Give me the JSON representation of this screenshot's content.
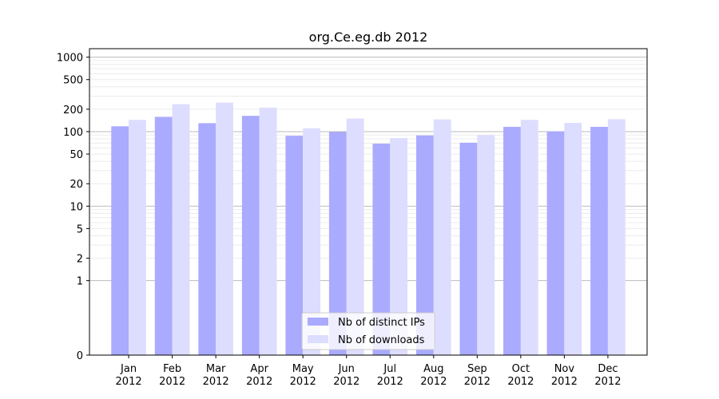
{
  "chart_data": {
    "type": "bar",
    "title": "org.Ce.eg.db 2012",
    "xlabel": "",
    "ylabel": "",
    "yscale": "symlog",
    "ylim": [
      0,
      1300
    ],
    "yticks": [
      0,
      1,
      2,
      5,
      10,
      20,
      50,
      100,
      200,
      500,
      1000
    ],
    "grid": true,
    "legend_position": "bottom-center",
    "categories": [
      [
        "Jan",
        "2012"
      ],
      [
        "Feb",
        "2012"
      ],
      [
        "Mar",
        "2012"
      ],
      [
        "Apr",
        "2012"
      ],
      [
        "May",
        "2012"
      ],
      [
        "Jun",
        "2012"
      ],
      [
        "Jul",
        "2012"
      ],
      [
        "Aug",
        "2012"
      ],
      [
        "Sep",
        "2012"
      ],
      [
        "Oct",
        "2012"
      ],
      [
        "Nov",
        "2012"
      ],
      [
        "Dec",
        "2012"
      ]
    ],
    "series": [
      {
        "name": "Nb of distinct IPs",
        "color": "#aaaaff",
        "values": [
          118,
          158,
          130,
          163,
          88,
          99,
          69,
          89,
          71,
          116,
          101,
          116
        ]
      },
      {
        "name": "Nb of downloads",
        "color": "#ddddff",
        "values": [
          144,
          234,
          245,
          210,
          111,
          150,
          82,
          146,
          90,
          144,
          131,
          147
        ]
      }
    ]
  }
}
